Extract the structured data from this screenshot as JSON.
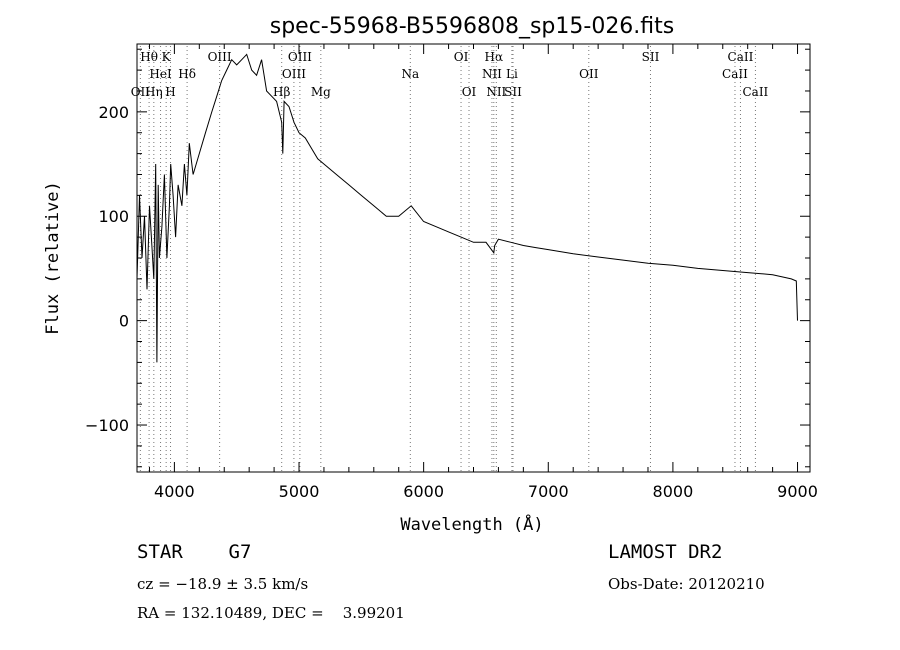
{
  "chart_data": {
    "type": "line",
    "title": "spec-55968-B5596808_sp15-026.fits",
    "xlabel": "Wavelength (Å)",
    "ylabel": "Flux (relative)",
    "xlim": [
      3700,
      9100
    ],
    "ylim": [
      -145,
      265
    ],
    "xticks": [
      4000,
      5000,
      6000,
      7000,
      8000,
      9000
    ],
    "yticks": [
      -100,
      0,
      100,
      200
    ],
    "grid": false,
    "series": [
      {
        "x": [
          3700,
          3720,
          3740,
          3760,
          3780,
          3800,
          3820,
          3835,
          3850,
          3860,
          3870,
          3880,
          3900,
          3920,
          3940,
          3960,
          3970,
          3990,
          4010,
          4030,
          4060,
          4080,
          4100,
          4120,
          4150,
          4200,
          4250,
          4300,
          4340,
          4380,
          4420,
          4460,
          4500,
          4540,
          4580,
          4620,
          4660,
          4700,
          4740,
          4780,
          4820,
          4861,
          4870,
          4880,
          4920,
          4960,
          5000,
          5050,
          5100,
          5150,
          5200,
          5300,
          5400,
          5500,
          5600,
          5700,
          5800,
          5900,
          6000,
          6100,
          6200,
          6300,
          6400,
          6500,
          6563,
          6570,
          6600,
          6700,
          6800,
          6900,
          7000,
          7200,
          7400,
          7600,
          7800,
          8000,
          8200,
          8400,
          8600,
          8800,
          8950,
          8990,
          9000
        ],
        "y": [
          40,
          120,
          60,
          100,
          30,
          110,
          70,
          40,
          150,
          -40,
          130,
          60,
          90,
          140,
          60,
          110,
          150,
          120,
          80,
          130,
          110,
          150,
          120,
          170,
          140,
          160,
          180,
          200,
          215,
          230,
          240,
          250,
          245,
          250,
          255,
          240,
          235,
          250,
          220,
          215,
          210,
          190,
          160,
          210,
          205,
          190,
          180,
          175,
          165,
          155,
          150,
          140,
          130,
          120,
          110,
          100,
          100,
          110,
          95,
          90,
          85,
          80,
          75,
          75,
          65,
          72,
          78,
          75,
          72,
          70,
          68,
          64,
          61,
          58,
          55,
          53,
          50,
          48,
          46,
          44,
          40,
          38,
          0
        ]
      }
    ],
    "line_markers": [
      {
        "label": "Hθ",
        "x": 3797,
        "row": 0
      },
      {
        "label": "K",
        "x": 3934,
        "row": 0
      },
      {
        "label": "HeI",
        "x": 3889,
        "row": 1
      },
      {
        "label": "Hδ",
        "x": 4102,
        "row": 1
      },
      {
        "label": "OII",
        "x": 3727,
        "row": 2
      },
      {
        "label": "Hη",
        "x": 3835,
        "row": 2
      },
      {
        "label": "H",
        "x": 3969,
        "row": 2
      },
      {
        "label": "OIII",
        "x": 4363,
        "row": 0
      },
      {
        "label": "Hβ",
        "x": 4861,
        "row": 2
      },
      {
        "label": "OIII",
        "x": 4959,
        "row": 1
      },
      {
        "label": "OIII",
        "x": 5007,
        "row": 0
      },
      {
        "label": "Mg",
        "x": 5175,
        "row": 2
      },
      {
        "label": "Na",
        "x": 5893,
        "row": 1
      },
      {
        "label": "OI",
        "x": 6300,
        "row": 0
      },
      {
        "label": "OI",
        "x": 6364,
        "row": 2
      },
      {
        "label": "Hα",
        "x": 6563,
        "row": 0
      },
      {
        "label": "NII",
        "x": 6548,
        "row": 1
      },
      {
        "label": "NII",
        "x": 6583,
        "row": 2
      },
      {
        "label": "Li",
        "x": 6708,
        "row": 1
      },
      {
        "label": "SII",
        "x": 6717,
        "row": 2
      },
      {
        "label": "OII",
        "x": 7325,
        "row": 1
      },
      {
        "label": "SII",
        "x": 7820,
        "row": 0
      },
      {
        "label": "CaII",
        "x": 8498,
        "row": 1
      },
      {
        "label": "CaII",
        "x": 8542,
        "row": 0
      },
      {
        "label": "CaII",
        "x": 8662,
        "row": 2
      }
    ]
  },
  "info": {
    "class_line": "STAR    G7",
    "survey": "LAMOST DR2",
    "cz_line": "cz = −18.9 ± 3.5 km/s",
    "obs_date": "Obs-Date: 20120210",
    "coords_line": "RA = 132.10489, DEC =    3.99201"
  }
}
